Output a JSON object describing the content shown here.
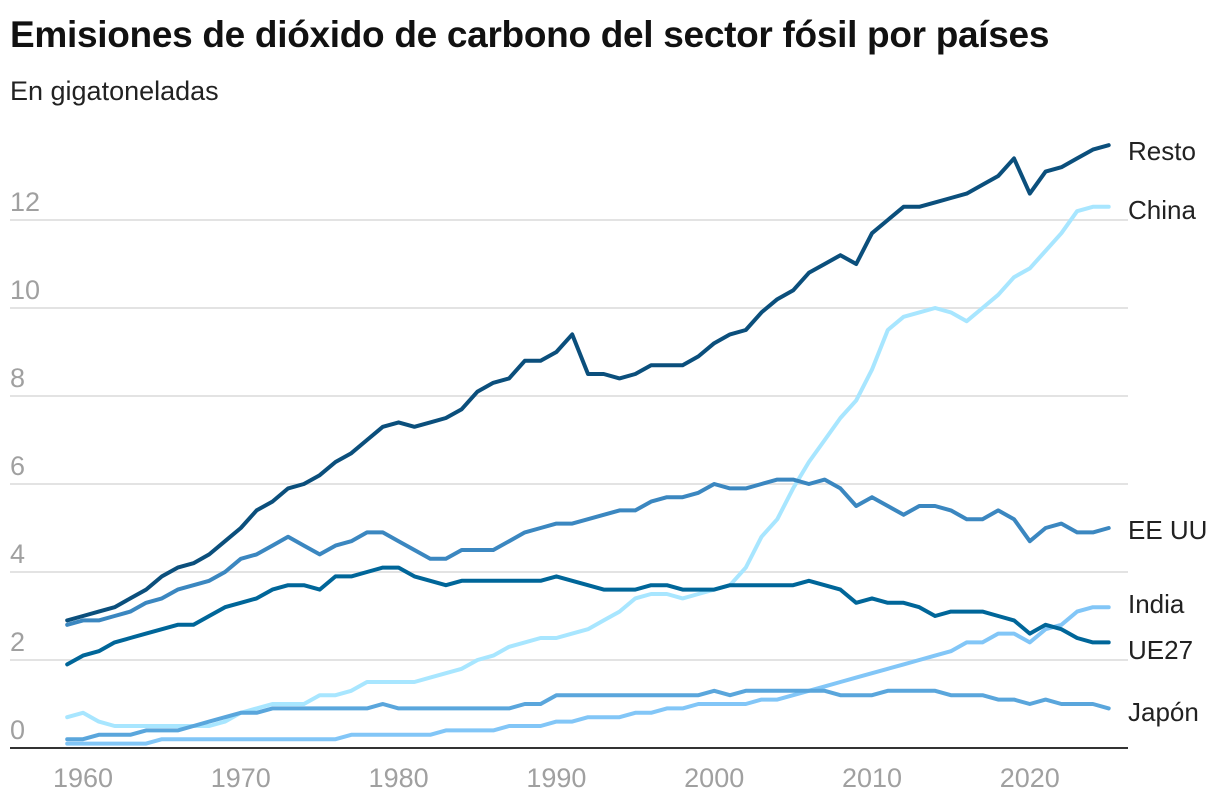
{
  "chart_data": {
    "type": "line",
    "title": "Emisiones de dióxido de carbono del sector fósil por países",
    "subtitle": "En gigatoneladas",
    "xlabel": "",
    "ylabel": "",
    "ylim": [
      0,
      14
    ],
    "xlim": [
      1959,
      2025
    ],
    "yticks": [
      "0",
      "2",
      "4",
      "6",
      "8",
      "10",
      "12"
    ],
    "xticks": [
      "1960",
      "1970",
      "1980",
      "1990",
      "2000",
      "2010",
      "2020"
    ],
    "grid": true,
    "legend": "direct-labels-right",
    "x_start": 1959,
    "series": [
      {
        "name": "Resto",
        "color": "#0b4f7c",
        "values": [
          2.9,
          3.0,
          3.1,
          3.2,
          3.4,
          3.6,
          3.9,
          4.1,
          4.2,
          4.4,
          4.7,
          5.0,
          5.4,
          5.6,
          5.9,
          6.0,
          6.2,
          6.5,
          6.7,
          7.0,
          7.3,
          7.4,
          7.3,
          7.4,
          7.5,
          7.7,
          8.1,
          8.3,
          8.4,
          8.8,
          8.8,
          9.0,
          9.4,
          8.5,
          8.5,
          8.4,
          8.5,
          8.7,
          8.7,
          8.7,
          8.9,
          9.2,
          9.4,
          9.5,
          9.9,
          10.2,
          10.4,
          10.8,
          11.0,
          11.2,
          11.0,
          11.7,
          12.0,
          12.3,
          12.3,
          12.4,
          12.5,
          12.6,
          12.8,
          13.0,
          13.4,
          12.6,
          13.1,
          13.2,
          13.4,
          13.6,
          13.7
        ]
      },
      {
        "name": "China",
        "color": "#a8e6ff",
        "values": [
          0.7,
          0.8,
          0.6,
          0.5,
          0.5,
          0.5,
          0.5,
          0.5,
          0.5,
          0.5,
          0.6,
          0.8,
          0.9,
          1.0,
          1.0,
          1.0,
          1.2,
          1.2,
          1.3,
          1.5,
          1.5,
          1.5,
          1.5,
          1.6,
          1.7,
          1.8,
          2.0,
          2.1,
          2.3,
          2.4,
          2.5,
          2.5,
          2.6,
          2.7,
          2.9,
          3.1,
          3.4,
          3.5,
          3.5,
          3.4,
          3.5,
          3.6,
          3.7,
          4.1,
          4.8,
          5.2,
          5.9,
          6.5,
          7.0,
          7.5,
          7.9,
          8.6,
          9.5,
          9.8,
          9.9,
          10.0,
          9.9,
          9.7,
          10.0,
          10.3,
          10.7,
          10.9,
          11.3,
          11.7,
          12.2,
          12.3,
          12.3
        ]
      },
      {
        "name": "EE UU",
        "color": "#3b87c0",
        "values": [
          2.8,
          2.9,
          2.9,
          3.0,
          3.1,
          3.3,
          3.4,
          3.6,
          3.7,
          3.8,
          4.0,
          4.3,
          4.4,
          4.6,
          4.8,
          4.6,
          4.4,
          4.6,
          4.7,
          4.9,
          4.9,
          4.7,
          4.5,
          4.3,
          4.3,
          4.5,
          4.5,
          4.5,
          4.7,
          4.9,
          5.0,
          5.1,
          5.1,
          5.2,
          5.3,
          5.4,
          5.4,
          5.6,
          5.7,
          5.7,
          5.8,
          6.0,
          5.9,
          5.9,
          6.0,
          6.1,
          6.1,
          6.0,
          6.1,
          5.9,
          5.5,
          5.7,
          5.5,
          5.3,
          5.5,
          5.5,
          5.4,
          5.2,
          5.2,
          5.4,
          5.2,
          4.7,
          5.0,
          5.1,
          4.9,
          4.9,
          5.0
        ]
      },
      {
        "name": "India",
        "color": "#82c6f7",
        "values": [
          0.1,
          0.1,
          0.1,
          0.1,
          0.1,
          0.1,
          0.2,
          0.2,
          0.2,
          0.2,
          0.2,
          0.2,
          0.2,
          0.2,
          0.2,
          0.2,
          0.2,
          0.2,
          0.3,
          0.3,
          0.3,
          0.3,
          0.3,
          0.3,
          0.4,
          0.4,
          0.4,
          0.4,
          0.5,
          0.5,
          0.5,
          0.6,
          0.6,
          0.7,
          0.7,
          0.7,
          0.8,
          0.8,
          0.9,
          0.9,
          1.0,
          1.0,
          1.0,
          1.0,
          1.1,
          1.1,
          1.2,
          1.3,
          1.4,
          1.5,
          1.6,
          1.7,
          1.8,
          1.9,
          2.0,
          2.1,
          2.2,
          2.4,
          2.4,
          2.6,
          2.6,
          2.4,
          2.7,
          2.8,
          3.1,
          3.2,
          3.2
        ]
      },
      {
        "name": "UE27",
        "color": "#006699",
        "values": [
          1.9,
          2.1,
          2.2,
          2.4,
          2.5,
          2.6,
          2.7,
          2.8,
          2.8,
          3.0,
          3.2,
          3.3,
          3.4,
          3.6,
          3.7,
          3.7,
          3.6,
          3.9,
          3.9,
          4.0,
          4.1,
          4.1,
          3.9,
          3.8,
          3.7,
          3.8,
          3.8,
          3.8,
          3.8,
          3.8,
          3.8,
          3.9,
          3.8,
          3.7,
          3.6,
          3.6,
          3.6,
          3.7,
          3.7,
          3.6,
          3.6,
          3.6,
          3.7,
          3.7,
          3.7,
          3.7,
          3.7,
          3.8,
          3.7,
          3.6,
          3.3,
          3.4,
          3.3,
          3.3,
          3.2,
          3.0,
          3.1,
          3.1,
          3.1,
          3.0,
          2.9,
          2.6,
          2.8,
          2.7,
          2.5,
          2.4,
          2.4
        ]
      },
      {
        "name": "Japón",
        "color": "#5aa6dc",
        "values": [
          0.2,
          0.2,
          0.3,
          0.3,
          0.3,
          0.4,
          0.4,
          0.4,
          0.5,
          0.6,
          0.7,
          0.8,
          0.8,
          0.9,
          0.9,
          0.9,
          0.9,
          0.9,
          0.9,
          0.9,
          1.0,
          0.9,
          0.9,
          0.9,
          0.9,
          0.9,
          0.9,
          0.9,
          0.9,
          1.0,
          1.0,
          1.2,
          1.2,
          1.2,
          1.2,
          1.2,
          1.2,
          1.2,
          1.2,
          1.2,
          1.2,
          1.3,
          1.2,
          1.3,
          1.3,
          1.3,
          1.3,
          1.3,
          1.3,
          1.2,
          1.2,
          1.2,
          1.3,
          1.3,
          1.3,
          1.3,
          1.2,
          1.2,
          1.2,
          1.1,
          1.1,
          1.0,
          1.1,
          1.0,
          1.0,
          1.0,
          0.9
        ]
      }
    ]
  }
}
